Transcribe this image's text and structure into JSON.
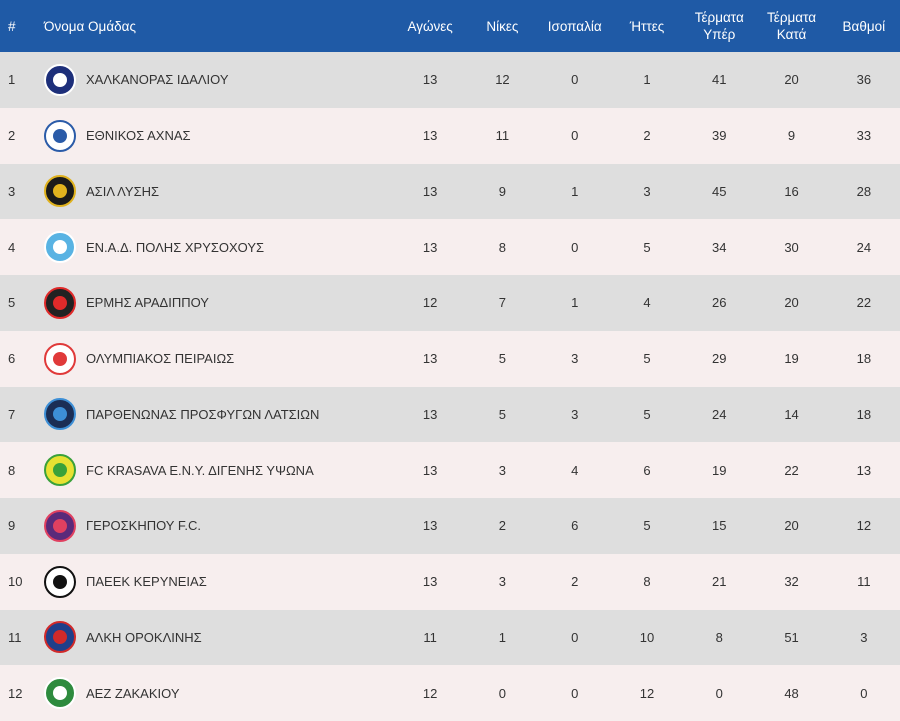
{
  "columns": {
    "rank": "#",
    "team": "Όνομα Ομάδας",
    "played": "Αγώνες",
    "wins": "Νίκες",
    "draws": "Ισοπαλία",
    "losses": "Ήττες",
    "goals_for_1": "Τέρματα",
    "goals_for_2": "Υπέρ",
    "goals_against_1": "Τέρματα",
    "goals_against_2": "Κατά",
    "points": "Βαθμοί"
  },
  "rows": [
    {
      "rank": "1",
      "team": "ΧΑΛΚΑΝΟΡΑΣ ΙΔΑΛΙΟΥ",
      "played": "13",
      "wins": "12",
      "draws": "0",
      "losses": "1",
      "gf": "41",
      "ga": "20",
      "pts": "36",
      "logo_color": "#1d2f7a",
      "logo_accent": "#ffffff",
      "logo_icon": "crest-icon"
    },
    {
      "rank": "2",
      "team": "ΕΘΝΙΚΟΣ ΑΧΝΑΣ",
      "played": "13",
      "wins": "11",
      "draws": "0",
      "losses": "2",
      "gf": "39",
      "ga": "9",
      "pts": "33",
      "logo_color": "#ffffff",
      "logo_accent": "#2a5ba8",
      "logo_icon": "crest-icon"
    },
    {
      "rank": "3",
      "team": "ΑΣΙΛ ΛΥΣΗΣ",
      "played": "13",
      "wins": "9",
      "draws": "1",
      "losses": "3",
      "gf": "45",
      "ga": "16",
      "pts": "28",
      "logo_color": "#1a1a1a",
      "logo_accent": "#e0b21e",
      "logo_icon": "crest-icon"
    },
    {
      "rank": "4",
      "team": "ΕΝ.Α.Δ. ΠΟΛΗΣ ΧΡΥΣΟΧΟΥΣ",
      "played": "13",
      "wins": "8",
      "draws": "0",
      "losses": "5",
      "gf": "34",
      "ga": "30",
      "pts": "24",
      "logo_color": "#59b3e3",
      "logo_accent": "#ffffff",
      "logo_icon": "crest-icon"
    },
    {
      "rank": "5",
      "team": "ΕΡΜΗΣ ΑΡΑΔΙΠΠΟΥ",
      "played": "12",
      "wins": "7",
      "draws": "1",
      "losses": "4",
      "gf": "26",
      "ga": "20",
      "pts": "22",
      "logo_color": "#222222",
      "logo_accent": "#e02a2a",
      "logo_icon": "crest-icon"
    },
    {
      "rank": "6",
      "team": "ΟΛΥΜΠΙΑΚΟΣ ΠΕΙΡΑΙΩΣ",
      "played": "13",
      "wins": "5",
      "draws": "3",
      "losses": "5",
      "gf": "29",
      "ga": "19",
      "pts": "18",
      "logo_color": "#ffffff",
      "logo_accent": "#e03a3a",
      "logo_icon": "crest-icon"
    },
    {
      "rank": "7",
      "team": "ΠΑΡΘΕΝΩΝΑΣ ΠΡΟΣΦΥΓΩΝ ΛΑΤΣΙΩΝ",
      "played": "13",
      "wins": "5",
      "draws": "3",
      "losses": "5",
      "gf": "24",
      "ga": "14",
      "pts": "18",
      "logo_color": "#1b2e55",
      "logo_accent": "#3d8fd6",
      "logo_icon": "crest-icon"
    },
    {
      "rank": "8",
      "team": "FC KRASAVA Ε.Ν.Υ. ΔΙΓΕΝΗΣ ΥΨΩΝΑ",
      "played": "13",
      "wins": "3",
      "draws": "4",
      "losses": "6",
      "gf": "19",
      "ga": "22",
      "pts": "13",
      "logo_color": "#e8e132",
      "logo_accent": "#3aa13a",
      "logo_icon": "crest-icon"
    },
    {
      "rank": "9",
      "team": "ΓΕΡΟΣΚΗΠΟΥ F.C.",
      "played": "13",
      "wins": "2",
      "draws": "6",
      "losses": "5",
      "gf": "15",
      "ga": "20",
      "pts": "12",
      "logo_color": "#5a2a7a",
      "logo_accent": "#e04060",
      "logo_icon": "crest-icon"
    },
    {
      "rank": "10",
      "team": "ΠΑΕΕΚ ΚΕΡΥΝΕΙΑΣ",
      "played": "13",
      "wins": "3",
      "draws": "2",
      "losses": "8",
      "gf": "21",
      "ga": "32",
      "pts": "11",
      "logo_color": "#ffffff",
      "logo_accent": "#111111",
      "logo_icon": "eagle-icon"
    },
    {
      "rank": "11",
      "team": "ΑΛΚΗ ΟΡΟΚΛΙΝΗΣ",
      "played": "11",
      "wins": "1",
      "draws": "0",
      "losses": "10",
      "gf": "8",
      "ga": "51",
      "pts": "3",
      "logo_color": "#1f3f8a",
      "logo_accent": "#d12a2a",
      "logo_icon": "crest-icon"
    },
    {
      "rank": "12",
      "team": "ΑΕΖ ΖΑΚΑΚΙΟΥ",
      "played": "12",
      "wins": "0",
      "draws": "0",
      "losses": "12",
      "gf": "0",
      "ga": "48",
      "pts": "0",
      "logo_color": "#2e8b3e",
      "logo_accent": "#ffffff",
      "logo_icon": "crest-icon"
    }
  ]
}
